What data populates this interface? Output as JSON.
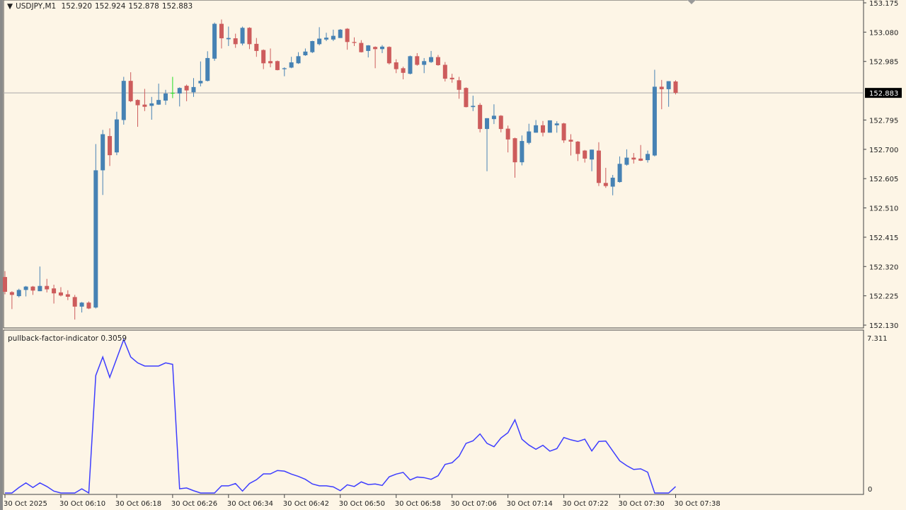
{
  "header": {
    "symbol": "USDJPY,M1",
    "open": "152.920",
    "high": "152.924",
    "low": "152.878",
    "close": "152.883"
  },
  "indicator": {
    "name": "pullback-factor-indicator",
    "value": "0.3059",
    "axis_max": "7.311",
    "axis_min": "0"
  },
  "current_price": "152.883",
  "colors": {
    "background": "#fdf5e6",
    "bull": "#4682b4",
    "bear": "#cd5c5c",
    "doji": "#22dd22",
    "indicator_line": "#3d3dff",
    "price_line": "#a9a9a9"
  },
  "chart_data": [
    {
      "type": "candlestick",
      "symbol": "USDJPY",
      "timeframe": "M1",
      "x_start": "30 Oct 2025 06:02",
      "x_end": "30 Oct 2025 07:38",
      "ylim": [
        152.13,
        153.175
      ],
      "y_ticks": [
        "153.175",
        "153.080",
        "152.985",
        "152.883",
        "152.795",
        "152.700",
        "152.605",
        "152.510",
        "152.415",
        "152.320",
        "152.225",
        "152.130"
      ],
      "x_ticks": [
        "30 Oct 2025",
        "30 Oct 06:10",
        "30 Oct 06:18",
        "30 Oct 06:26",
        "30 Oct 06:34",
        "30 Oct 06:42",
        "30 Oct 06:50",
        "30 Oct 06:58",
        "30 Oct 07:06",
        "30 Oct 07:14",
        "30 Oct 07:22",
        "30 Oct 07:30",
        "30 Oct 07:38"
      ],
      "ohlc": [
        [
          152.286,
          152.305,
          152.23,
          152.238
        ],
        [
          152.237,
          152.24,
          152.182,
          152.228
        ],
        [
          152.224,
          152.248,
          152.22,
          152.244
        ],
        [
          152.244,
          152.257,
          152.223,
          152.255
        ],
        [
          152.255,
          152.257,
          152.228,
          152.242
        ],
        [
          152.24,
          152.32,
          152.24,
          152.257
        ],
        [
          152.257,
          152.28,
          152.236,
          152.246
        ],
        [
          152.249,
          152.261,
          152.2,
          152.233
        ],
        [
          152.236,
          152.253,
          152.223,
          152.226
        ],
        [
          152.23,
          152.243,
          152.211,
          152.222
        ],
        [
          152.221,
          152.228,
          152.148,
          152.19
        ],
        [
          152.19,
          152.205,
          152.171,
          152.203
        ],
        [
          152.203,
          152.207,
          152.182,
          152.184
        ],
        [
          152.187,
          152.717,
          152.184,
          152.632
        ],
        [
          152.632,
          152.763,
          152.552,
          152.749
        ],
        [
          152.743,
          152.768,
          152.646,
          152.681
        ],
        [
          152.69,
          152.822,
          152.681,
          152.797
        ],
        [
          152.795,
          152.935,
          152.78,
          152.922
        ],
        [
          152.922,
          152.95,
          152.853,
          152.856
        ],
        [
          152.86,
          152.862,
          152.773,
          152.843
        ],
        [
          152.845,
          152.896,
          152.824,
          152.838
        ],
        [
          152.841,
          152.87,
          152.796,
          152.849
        ],
        [
          152.845,
          152.913,
          152.844,
          152.86
        ],
        [
          152.858,
          152.893,
          152.844,
          152.881
        ],
        [
          152.883,
          152.935,
          152.866,
          152.883
        ],
        [
          152.881,
          152.901,
          152.839,
          152.899
        ],
        [
          152.906,
          152.91,
          152.856,
          152.891
        ],
        [
          152.885,
          152.931,
          152.87,
          152.902
        ],
        [
          152.914,
          152.985,
          152.904,
          152.922
        ],
        [
          152.922,
          153.018,
          152.92,
          152.996
        ],
        [
          152.994,
          153.111,
          152.987,
          153.107
        ],
        [
          153.107,
          153.121,
          153.027,
          153.06
        ],
        [
          153.057,
          153.098,
          153.035,
          153.061
        ],
        [
          153.06,
          153.075,
          153.029,
          153.041
        ],
        [
          153.043,
          153.098,
          153.037,
          153.094
        ],
        [
          153.094,
          153.096,
          153.025,
          153.041
        ],
        [
          153.042,
          153.061,
          153.0,
          153.019
        ],
        [
          153.022,
          153.024,
          152.96,
          152.979
        ],
        [
          152.986,
          153.027,
          152.966,
          152.979
        ],
        [
          152.986,
          152.988,
          152.956,
          152.957
        ],
        [
          152.96,
          152.966,
          152.937,
          152.963
        ],
        [
          152.965,
          153.0,
          152.963,
          152.982
        ],
        [
          152.979,
          153.015,
          152.977,
          153.002
        ],
        [
          153.005,
          153.027,
          153.003,
          153.017
        ],
        [
          153.015,
          153.052,
          153.012,
          153.051
        ],
        [
          153.041,
          153.096,
          153.037,
          153.059
        ],
        [
          153.056,
          153.078,
          153.051,
          153.062
        ],
        [
          153.056,
          153.088,
          153.051,
          153.068
        ],
        [
          153.061,
          153.09,
          153.061,
          153.088
        ],
        [
          153.091,
          153.093,
          153.023,
          153.048
        ],
        [
          153.048,
          153.063,
          153.035,
          153.045
        ],
        [
          153.045,
          153.054,
          153.014,
          153.015
        ],
        [
          153.019,
          153.038,
          152.998,
          153.037
        ],
        [
          153.032,
          153.034,
          152.963,
          153.025
        ],
        [
          153.025,
          153.038,
          153.012,
          153.033
        ],
        [
          153.032,
          153.034,
          152.975,
          152.979
        ],
        [
          152.982,
          152.992,
          152.947,
          152.96
        ],
        [
          152.963,
          152.968,
          152.927,
          152.948
        ],
        [
          152.945,
          153.004,
          152.943,
          153.002
        ],
        [
          153.002,
          153.012,
          152.971,
          152.974
        ],
        [
          152.974,
          152.996,
          152.947,
          152.986
        ],
        [
          152.983,
          153.019,
          152.98,
          152.999
        ],
        [
          152.999,
          153.006,
          152.971,
          152.973
        ],
        [
          152.974,
          152.983,
          152.92,
          152.929
        ],
        [
          152.932,
          152.945,
          152.916,
          152.927
        ],
        [
          152.924,
          152.935,
          152.864,
          152.893
        ],
        [
          152.899,
          152.901,
          152.836,
          152.837
        ],
        [
          152.837,
          152.874,
          152.824,
          152.841
        ],
        [
          152.844,
          152.85,
          152.755,
          152.766
        ],
        [
          152.766,
          152.801,
          152.629,
          152.801
        ],
        [
          152.798,
          152.846,
          152.782,
          152.809
        ],
        [
          152.809,
          152.811,
          152.755,
          152.766
        ],
        [
          152.767,
          152.777,
          152.69,
          152.732
        ],
        [
          152.736,
          152.738,
          152.608,
          152.658
        ],
        [
          152.658,
          152.745,
          152.648,
          152.727
        ],
        [
          152.721,
          152.783,
          152.716,
          152.758
        ],
        [
          152.754,
          152.795,
          152.754,
          152.778
        ],
        [
          152.778,
          152.792,
          152.742,
          152.754
        ],
        [
          152.754,
          152.794,
          152.754,
          152.794
        ],
        [
          152.778,
          152.791,
          152.754,
          152.784
        ],
        [
          152.784,
          152.786,
          152.721,
          152.729
        ],
        [
          152.731,
          152.749,
          152.68,
          152.725
        ],
        [
          152.725,
          152.727,
          152.662,
          152.685
        ],
        [
          152.696,
          152.698,
          152.657,
          152.67
        ],
        [
          152.667,
          152.699,
          152.629,
          152.699
        ],
        [
          152.696,
          152.723,
          152.581,
          152.591
        ],
        [
          152.591,
          152.64,
          152.575,
          152.581
        ],
        [
          152.579,
          152.617,
          152.551,
          152.608
        ],
        [
          152.594,
          152.677,
          152.592,
          152.653
        ],
        [
          152.65,
          152.7,
          152.647,
          152.673
        ],
        [
          152.673,
          152.688,
          152.654,
          152.667
        ],
        [
          152.67,
          152.714,
          152.662,
          152.663
        ],
        [
          152.665,
          152.696,
          152.657,
          152.685
        ],
        [
          152.68,
          152.958,
          152.677,
          152.903
        ],
        [
          152.903,
          152.925,
          152.83,
          152.895
        ],
        [
          152.895,
          152.921,
          152.838,
          152.921
        ],
        [
          152.92,
          152.924,
          152.878,
          152.883
        ]
      ]
    },
    {
      "type": "line",
      "series_name": "pullback-factor-indicator",
      "ylim": [
        0,
        7.311
      ],
      "y_ticks": [
        "7.311",
        "0"
      ],
      "values": [
        0,
        0,
        0.26,
        0.48,
        0.26,
        0.48,
        0.31,
        0.09,
        0,
        0,
        0,
        0.2,
        0,
        5.59,
        6.47,
        5.5,
        6.4,
        7.3,
        6.47,
        6.19,
        6.04,
        6.04,
        6.04,
        6.19,
        6.12,
        0.2,
        0.24,
        0.11,
        0,
        0,
        0,
        0.34,
        0.34,
        0.45,
        0.09,
        0.45,
        0.63,
        0.91,
        0.91,
        1.07,
        1.04,
        0.9,
        0.79,
        0.65,
        0.43,
        0.34,
        0.34,
        0.29,
        0.11,
        0.39,
        0.31,
        0.53,
        0.4,
        0.43,
        0.36,
        0.77,
        0.9,
        0.98,
        0.62,
        0.76,
        0.73,
        0.65,
        0.82,
        1.36,
        1.44,
        1.75,
        2.36,
        2.48,
        2.81,
        2.36,
        2.2,
        2.62,
        2.87,
        3.48,
        2.56,
        2.28,
        2.08,
        2.27,
        1.99,
        2.11,
        2.64,
        2.53,
        2.45,
        2.56,
        2.0,
        2.45,
        2.47,
        2.0,
        1.53,
        1.3,
        1.12,
        1.15,
        0.99,
        0,
        0,
        0,
        0.3059
      ]
    }
  ]
}
